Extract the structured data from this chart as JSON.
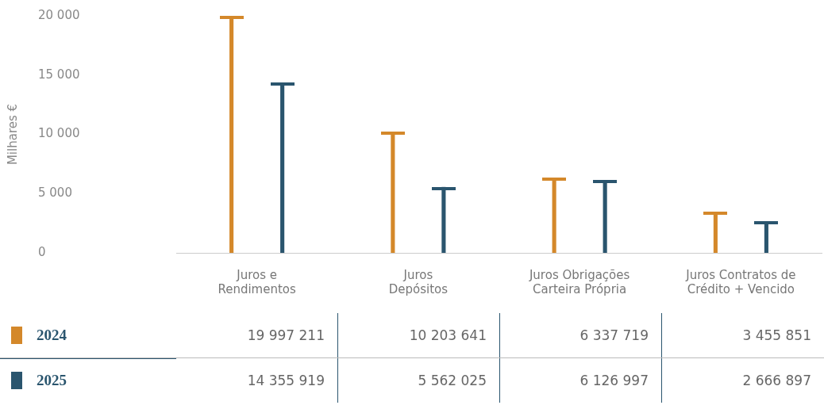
{
  "chart_data": {
    "type": "bar",
    "ylabel": "Milhares €",
    "categories": [
      "Juros e\nRendimentos",
      "Juros\nDepósitos",
      "Juros Obrigações\nCarteira Própria",
      "Juros Contratos de\nCrédito + Vencido"
    ],
    "series": [
      {
        "name": "2024",
        "color": "#d4882a",
        "values": [
          19997.211,
          10203.641,
          6337.719,
          3455.851
        ]
      },
      {
        "name": "2025",
        "color": "#2a556e",
        "values": [
          14355.919,
          5562.025,
          6126.997,
          2666.897
        ]
      }
    ],
    "annotations": [
      "19 997 211",
      "10 203 641",
      "6 337 719",
      "3 455 851",
      "14 355 919",
      "5 562 025",
      "6 126 997",
      "2 666 897"
    ],
    "ylim": [
      0,
      20000
    ],
    "yticks": [
      {
        "value": 0,
        "label": "0"
      },
      {
        "value": 5000,
        "label": "5 000"
      },
      {
        "value": 10000,
        "label": "10 000"
      },
      {
        "value": 15000,
        "label": "15 000"
      },
      {
        "value": 20000,
        "label": "20 000"
      }
    ],
    "grid": false,
    "legend": "bottom"
  }
}
